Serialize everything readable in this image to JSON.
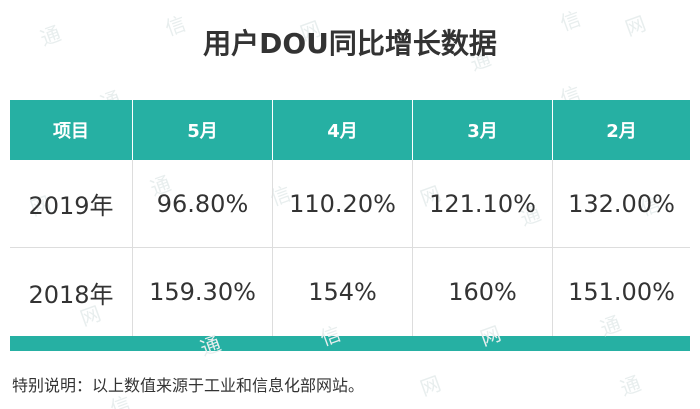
{
  "header": {
    "title": "用户DOU同比增长数据"
  },
  "table": {
    "columns": [
      "项目",
      "5月",
      "4月",
      "3月",
      "2月"
    ],
    "rows": [
      [
        "2019年",
        "96.80%",
        "110.20%",
        "121.10%",
        "132.00%"
      ],
      [
        "2018年",
        "159.30%",
        "154%",
        "160%",
        "151.00%"
      ]
    ]
  },
  "note": "特别说明：以上数值来源于工业和信息化部网站。",
  "watermark": [
    "通",
    "信",
    "网"
  ]
}
